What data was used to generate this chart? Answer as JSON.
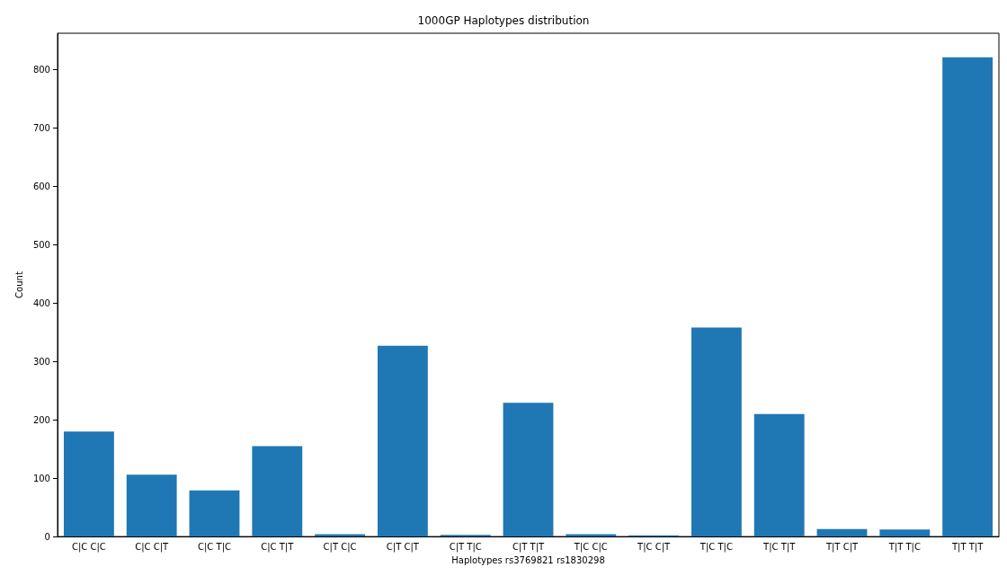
{
  "chart_data": {
    "type": "bar",
    "title": "1000GP Haplotypes distribution",
    "xlabel": "Haplotypes rs3769821 rs1830298",
    "ylabel": "Count",
    "categories": [
      "C|C C|C",
      "C|C C|T",
      "C|C T|C",
      "C|C T|T",
      "C|T C|C",
      "C|T C|T",
      "C|T T|C",
      "C|T T|T",
      "T|C C|C",
      "T|C C|T",
      "T|C T|C",
      "T|C T|T",
      "T|T C|T",
      "T|T T|C",
      "T|T T|T"
    ],
    "values": [
      180,
      106,
      79,
      155,
      4,
      327,
      3,
      229,
      4,
      2,
      358,
      210,
      13,
      12,
      821
    ],
    "color": "#1f77b4",
    "ylim": [
      0,
      862
    ],
    "yticks": [
      0,
      100,
      200,
      300,
      400,
      500,
      600,
      700,
      800
    ],
    "grid": false
  }
}
